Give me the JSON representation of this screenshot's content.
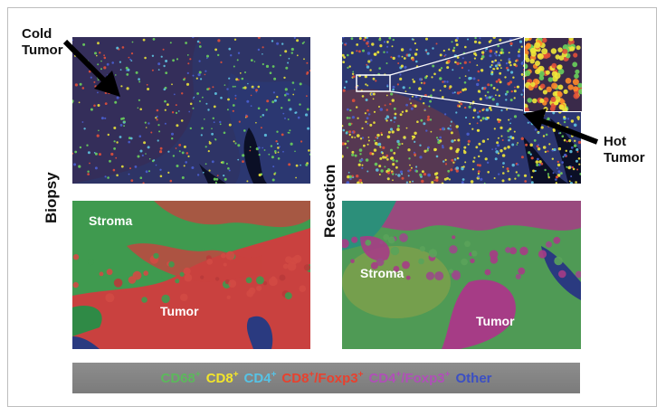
{
  "annotations": {
    "cold_tumor": [
      "Cold",
      "Tumor"
    ],
    "hot_tumor": [
      "Hot",
      "Tumor"
    ]
  },
  "side_labels": {
    "left": "Biopsy",
    "right": "Resection"
  },
  "region_labels": {
    "biopsy_stroma": "Stroma",
    "biopsy_tumor": "Tumor",
    "resection_stroma": "Stroma",
    "resection_tumor": "Tumor"
  },
  "legend": [
    {
      "base": "CD68",
      "sup": "+",
      "suffix": "",
      "suffix_sup": "",
      "color": "#5cb85c"
    },
    {
      "base": "CD8",
      "sup": "+",
      "suffix": "",
      "suffix_sup": "",
      "color": "#f2e52b"
    },
    {
      "base": "CD4",
      "sup": "+",
      "suffix": "",
      "suffix_sup": "",
      "color": "#56c3e6"
    },
    {
      "base": "CD8",
      "sup": "+",
      "suffix": "/Foxp3",
      "suffix_sup": "+",
      "color": "#e8412e"
    },
    {
      "base": "CD4",
      "sup": "+",
      "suffix": "/Foxp3",
      "suffix_sup": "+",
      "color": "#b04fb8"
    },
    {
      "base": "Other",
      "sup": "",
      "suffix": "",
      "suffix_sup": "",
      "color": "#3b4fc4"
    }
  ],
  "colors": {
    "tissue_dark": "#2a2f5e",
    "stroma_green": "#3f9a4f",
    "tumor_red": "#c9413f",
    "magenta": "#a63c86"
  }
}
